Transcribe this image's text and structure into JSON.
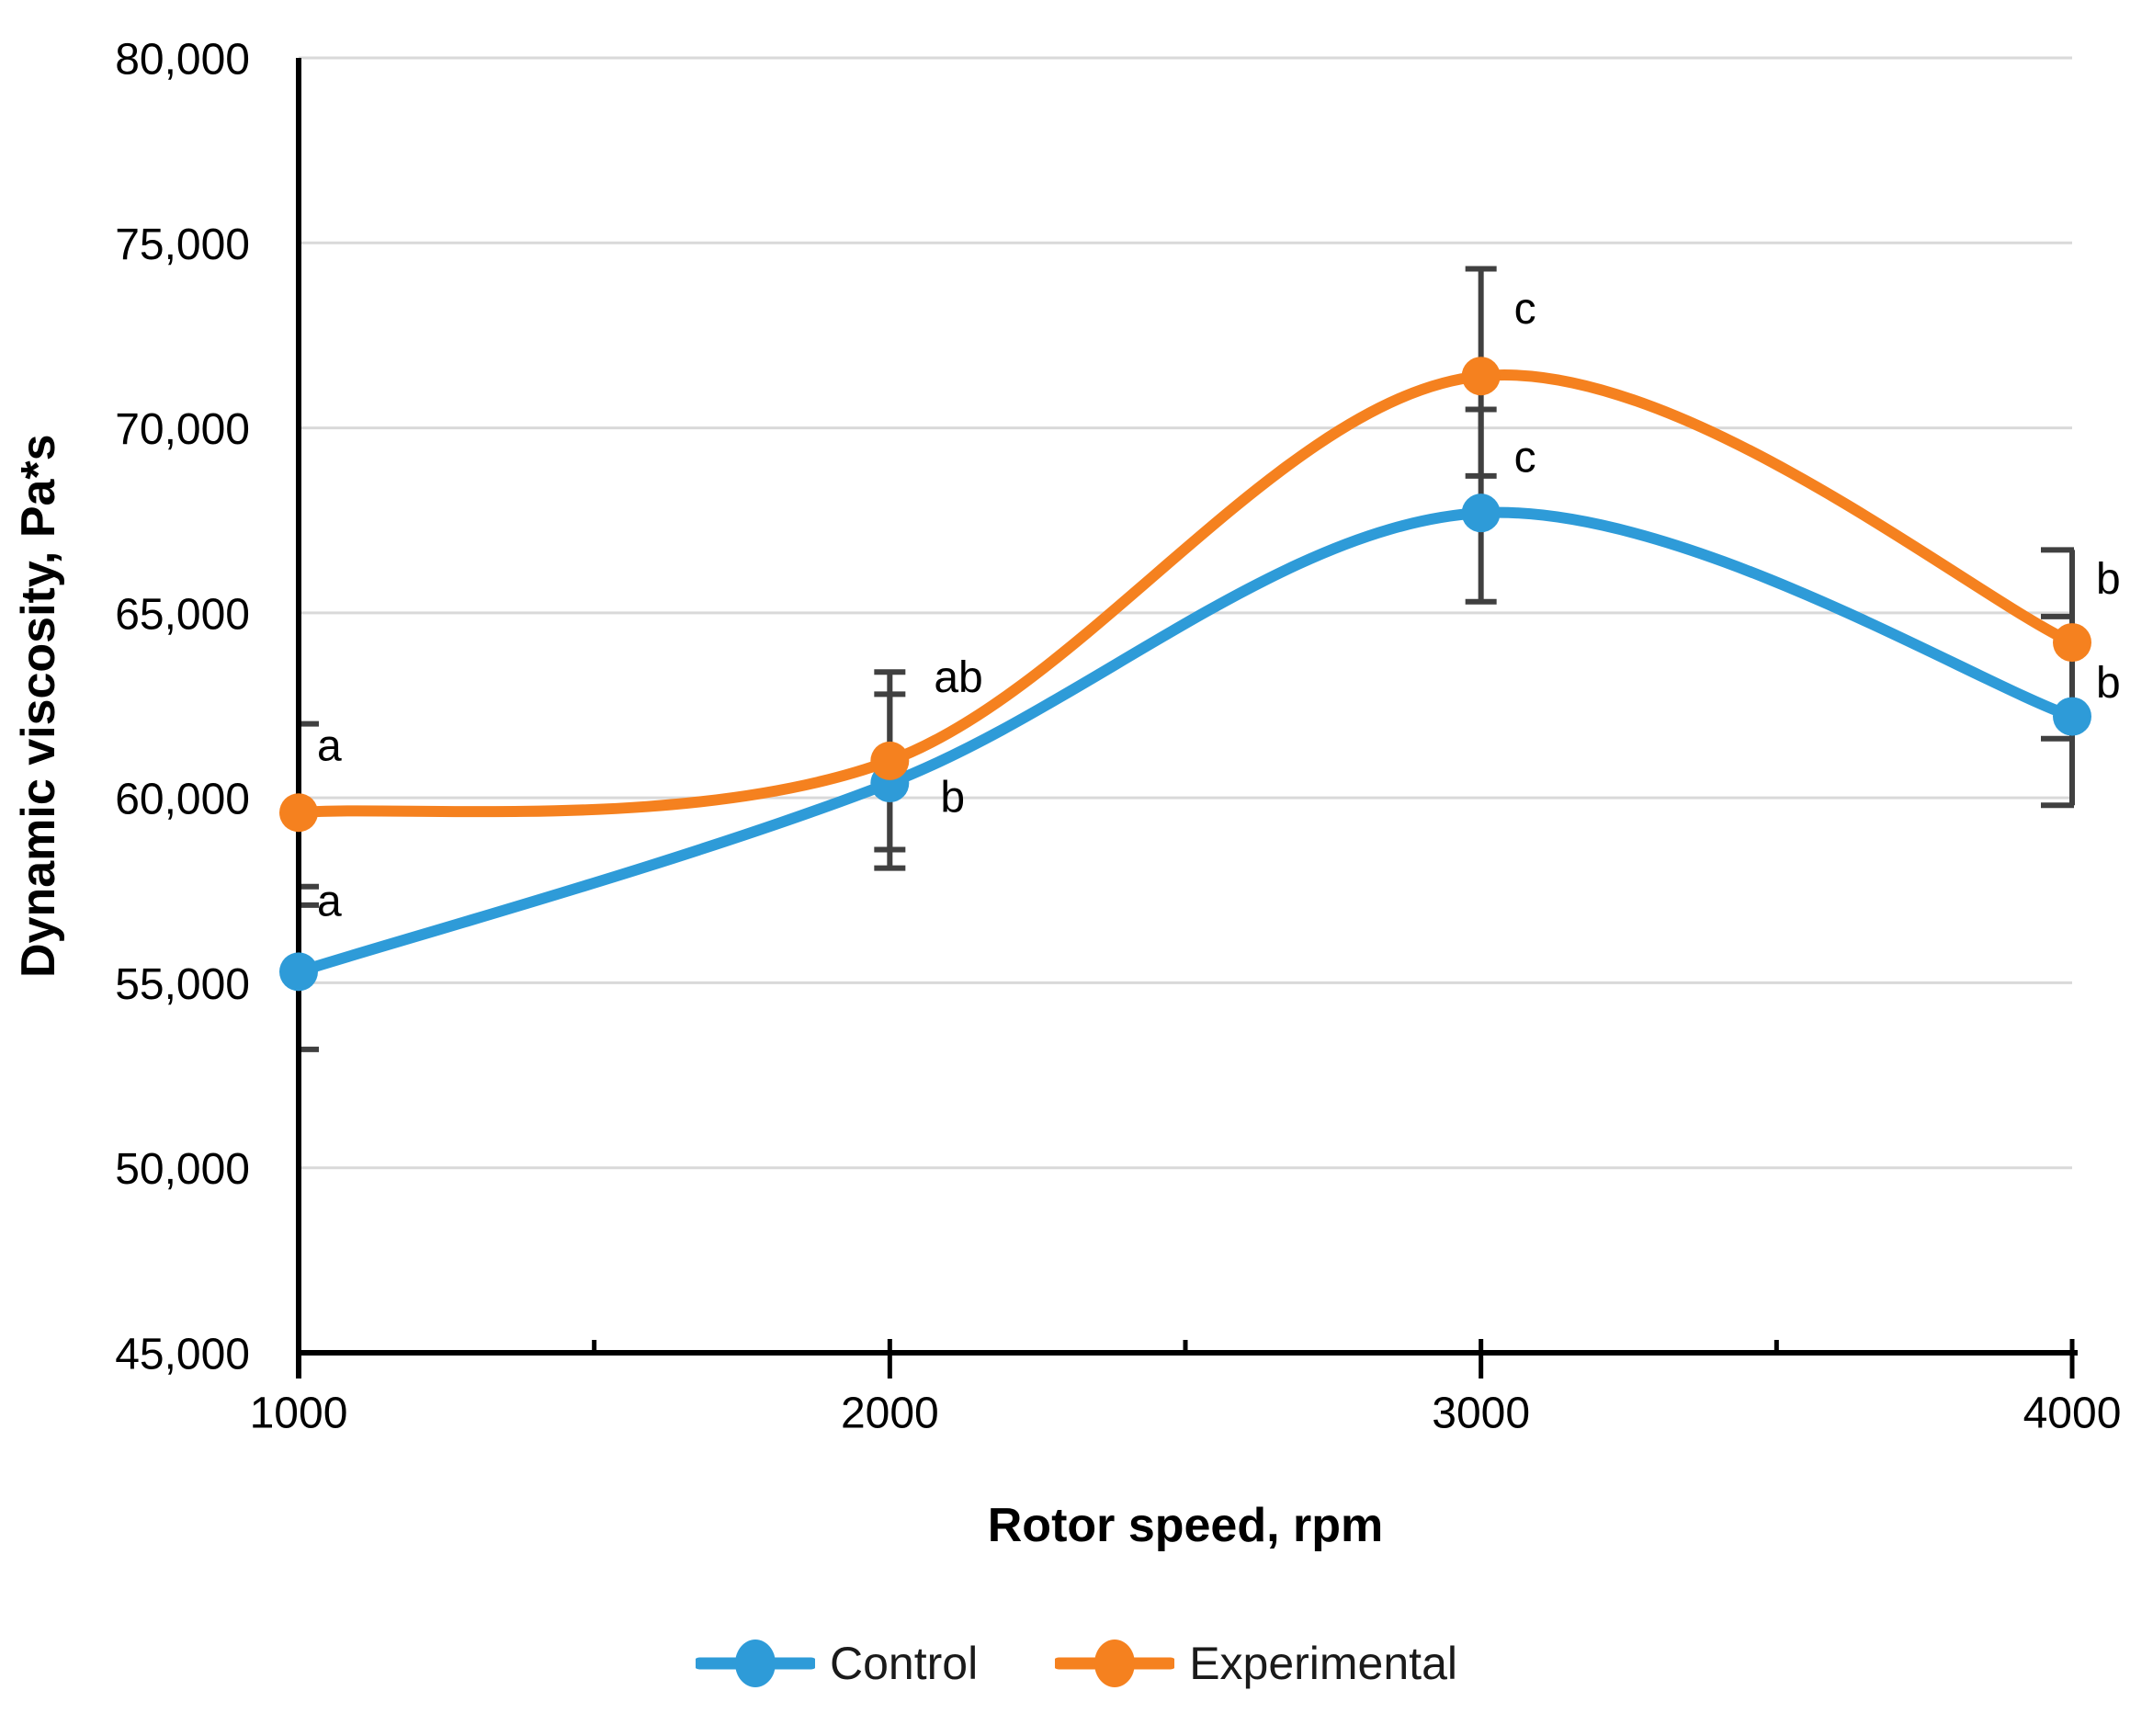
{
  "chart_data": {
    "type": "line",
    "title": "",
    "xlabel": "Rotor speed, rpm",
    "ylabel": "Dynamic viscosity, Pa*s",
    "x": [
      1000,
      2000,
      3000,
      4000
    ],
    "x_tick_labels": [
      "1000",
      "2000",
      "3000",
      "4000"
    ],
    "y_ticks": [
      45000,
      50000,
      55000,
      60000,
      65000,
      70000,
      75000,
      80000
    ],
    "y_tick_labels": [
      "45,000",
      "50,000",
      "55,000",
      "60,000",
      "65,000",
      "70,000",
      "75,000",
      "80,000"
    ],
    "ylim": [
      45000,
      80000
    ],
    "grid": "horizontal",
    "line_style": "smooth",
    "legend_position": "bottom-center",
    "series": [
      {
        "name": "Control",
        "color": "#2E9BD8",
        "values": [
          55300,
          60400,
          67700,
          62200
        ],
        "error_low": [
          53200,
          58100,
          65300,
          59800
        ],
        "error_high": [
          57100,
          62800,
          70500,
          64900
        ]
      },
      {
        "name": "Experimental",
        "color": "#F5811F",
        "values": [
          59600,
          61000,
          71400,
          64200
        ],
        "error_low": [
          57600,
          58600,
          68700,
          61600
        ],
        "error_high": [
          62000,
          63400,
          74300,
          66700
        ]
      }
    ],
    "annotations": [
      {
        "text": "a",
        "x": 1000,
        "y": 61400,
        "dx": 20,
        "series": "Experimental"
      },
      {
        "text": "a",
        "x": 1000,
        "y": 57200,
        "dx": 20,
        "series": "Control"
      },
      {
        "text": "ab",
        "x": 2000,
        "y": 63250,
        "dx": 48,
        "series": "Experimental"
      },
      {
        "text": "b",
        "x": 2000,
        "y": 60000,
        "dx": 55,
        "series": "Control"
      },
      {
        "text": "c",
        "x": 3000,
        "y": 73200,
        "dx": 36,
        "series": "Experimental"
      },
      {
        "text": "c",
        "x": 3000,
        "y": 69200,
        "dx": 36,
        "series": "Control"
      },
      {
        "text": "b",
        "x": 4000,
        "y": 65900,
        "dx": 26,
        "series": "Experimental"
      },
      {
        "text": "b",
        "x": 4000,
        "y": 63100,
        "dx": 26,
        "series": "Control"
      }
    ],
    "colors": {
      "gridline": "#D9D9D9",
      "axis": "#000000",
      "error_bar": "#404040",
      "text": "#000000"
    }
  }
}
